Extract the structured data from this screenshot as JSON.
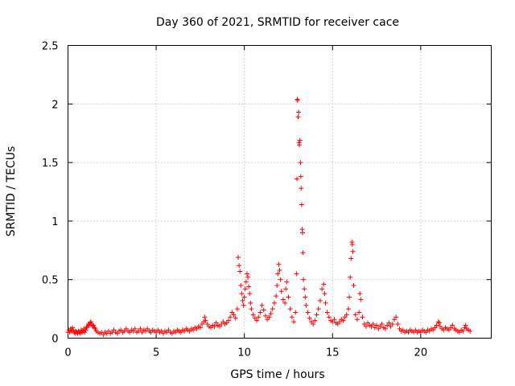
{
  "chart_data": {
    "type": "scatter",
    "title": "Day 360 of 2021, SRMTID for receiver cace",
    "xlabel": "GPS time / hours",
    "ylabel": "SRMTID / TECUs",
    "xlim": [
      0,
      24
    ],
    "ylim": [
      0,
      2.5
    ],
    "xticks": [
      0,
      5,
      10,
      15,
      20
    ],
    "xtick_labels": [
      "0",
      "5",
      "10",
      "15",
      "20"
    ],
    "yticks": [
      0,
      0.5,
      1,
      1.5,
      2,
      2.5
    ],
    "ytick_labels": [
      "0",
      "0.5",
      "1",
      "1.5",
      "2",
      "2.5"
    ],
    "grid": true,
    "marker": "plus",
    "color": "#ff0000",
    "series": [
      {
        "name": "SRMTID",
        "points": [
          [
            0.0,
            0.05
          ],
          [
            0.05,
            0.07
          ],
          [
            0.1,
            0.05
          ],
          [
            0.15,
            0.08
          ],
          [
            0.2,
            0.06
          ],
          [
            0.25,
            0.09
          ],
          [
            0.3,
            0.07
          ],
          [
            0.35,
            0.05
          ],
          [
            0.4,
            0.04
          ],
          [
            0.45,
            0.06
          ],
          [
            0.5,
            0.05
          ],
          [
            0.55,
            0.04
          ],
          [
            0.6,
            0.06
          ],
          [
            0.65,
            0.05
          ],
          [
            0.7,
            0.04
          ],
          [
            0.75,
            0.07
          ],
          [
            0.8,
            0.05
          ],
          [
            0.85,
            0.06
          ],
          [
            0.9,
            0.08
          ],
          [
            0.95,
            0.05
          ],
          [
            1.0,
            0.07
          ],
          [
            1.05,
            0.09
          ],
          [
            1.1,
            0.1
          ],
          [
            1.15,
            0.12
          ],
          [
            1.2,
            0.11
          ],
          [
            1.25,
            0.13
          ],
          [
            1.3,
            0.14
          ],
          [
            1.35,
            0.12
          ],
          [
            1.4,
            0.1
          ],
          [
            1.45,
            0.11
          ],
          [
            1.5,
            0.09
          ],
          [
            1.55,
            0.08
          ],
          [
            1.6,
            0.06
          ],
          [
            1.7,
            0.05
          ],
          [
            1.8,
            0.04
          ],
          [
            1.9,
            0.05
          ],
          [
            2.0,
            0.03
          ],
          [
            2.1,
            0.05
          ],
          [
            2.2,
            0.04
          ],
          [
            2.3,
            0.06
          ],
          [
            2.4,
            0.04
          ],
          [
            2.5,
            0.05
          ],
          [
            2.6,
            0.07
          ],
          [
            2.7,
            0.05
          ],
          [
            2.8,
            0.04
          ],
          [
            2.9,
            0.06
          ],
          [
            3.0,
            0.07
          ],
          [
            3.1,
            0.05
          ],
          [
            3.2,
            0.06
          ],
          [
            3.3,
            0.08
          ],
          [
            3.4,
            0.06
          ],
          [
            3.5,
            0.05
          ],
          [
            3.6,
            0.07
          ],
          [
            3.7,
            0.06
          ],
          [
            3.8,
            0.08
          ],
          [
            3.9,
            0.05
          ],
          [
            4.0,
            0.06
          ],
          [
            4.1,
            0.08
          ],
          [
            4.2,
            0.05
          ],
          [
            4.3,
            0.07
          ],
          [
            4.4,
            0.06
          ],
          [
            4.5,
            0.08
          ],
          [
            4.6,
            0.06
          ],
          [
            4.7,
            0.05
          ],
          [
            4.8,
            0.07
          ],
          [
            4.9,
            0.06
          ],
          [
            5.0,
            0.05
          ],
          [
            5.1,
            0.07
          ],
          [
            5.2,
            0.05
          ],
          [
            5.3,
            0.06
          ],
          [
            5.4,
            0.04
          ],
          [
            5.5,
            0.06
          ],
          [
            5.6,
            0.05
          ],
          [
            5.7,
            0.07
          ],
          [
            5.8,
            0.05
          ],
          [
            5.9,
            0.04
          ],
          [
            6.0,
            0.06
          ],
          [
            6.1,
            0.05
          ],
          [
            6.2,
            0.07
          ],
          [
            6.3,
            0.06
          ],
          [
            6.4,
            0.05
          ],
          [
            6.5,
            0.07
          ],
          [
            6.6,
            0.06
          ],
          [
            6.7,
            0.08
          ],
          [
            6.8,
            0.07
          ],
          [
            6.9,
            0.06
          ],
          [
            7.0,
            0.08
          ],
          [
            7.1,
            0.07
          ],
          [
            7.2,
            0.09
          ],
          [
            7.3,
            0.08
          ],
          [
            7.4,
            0.1
          ],
          [
            7.5,
            0.09
          ],
          [
            7.6,
            0.12
          ],
          [
            7.7,
            0.14
          ],
          [
            7.75,
            0.18
          ],
          [
            7.8,
            0.15
          ],
          [
            7.9,
            0.12
          ],
          [
            8.0,
            0.1
          ],
          [
            8.1,
            0.09
          ],
          [
            8.2,
            0.11
          ],
          [
            8.3,
            0.1
          ],
          [
            8.4,
            0.13
          ],
          [
            8.5,
            0.11
          ],
          [
            8.6,
            0.1
          ],
          [
            8.7,
            0.12
          ],
          [
            8.8,
            0.14
          ],
          [
            8.9,
            0.12
          ],
          [
            9.0,
            0.13
          ],
          [
            9.1,
            0.15
          ],
          [
            9.2,
            0.18
          ],
          [
            9.3,
            0.22
          ],
          [
            9.4,
            0.2
          ],
          [
            9.5,
            0.17
          ],
          [
            9.6,
            0.25
          ],
          [
            9.65,
            0.69
          ],
          [
            9.7,
            0.62
          ],
          [
            9.75,
            0.57
          ],
          [
            9.8,
            0.45
          ],
          [
            9.85,
            0.38
          ],
          [
            9.9,
            0.32
          ],
          [
            9.95,
            0.28
          ],
          [
            10.0,
            0.35
          ],
          [
            10.05,
            0.42
          ],
          [
            10.1,
            0.48
          ],
          [
            10.15,
            0.55
          ],
          [
            10.2,
            0.52
          ],
          [
            10.25,
            0.44
          ],
          [
            10.3,
            0.38
          ],
          [
            10.35,
            0.3
          ],
          [
            10.4,
            0.25
          ],
          [
            10.5,
            0.2
          ],
          [
            10.6,
            0.17
          ],
          [
            10.7,
            0.15
          ],
          [
            10.8,
            0.18
          ],
          [
            10.9,
            0.22
          ],
          [
            11.0,
            0.28
          ],
          [
            11.1,
            0.24
          ],
          [
            11.2,
            0.19
          ],
          [
            11.3,
            0.16
          ],
          [
            11.4,
            0.18
          ],
          [
            11.5,
            0.21
          ],
          [
            11.6,
            0.25
          ],
          [
            11.7,
            0.3
          ],
          [
            11.8,
            0.36
          ],
          [
            11.85,
            0.45
          ],
          [
            11.9,
            0.55
          ],
          [
            11.95,
            0.63
          ],
          [
            12.0,
            0.58
          ],
          [
            12.05,
            0.5
          ],
          [
            12.1,
            0.4
          ],
          [
            12.2,
            0.33
          ],
          [
            12.3,
            0.3
          ],
          [
            12.35,
            0.42
          ],
          [
            12.4,
            0.48
          ],
          [
            12.5,
            0.35
          ],
          [
            12.6,
            0.25
          ],
          [
            12.7,
            0.18
          ],
          [
            12.8,
            0.14
          ],
          [
            12.9,
            0.22
          ],
          [
            12.95,
            0.55
          ],
          [
            12.98,
            1.36
          ],
          [
            13.0,
            2.04
          ],
          [
            13.02,
            2.03
          ],
          [
            13.05,
            1.89
          ],
          [
            13.08,
            1.93
          ],
          [
            13.1,
            1.67
          ],
          [
            13.12,
            1.65
          ],
          [
            13.15,
            1.69
          ],
          [
            13.18,
            1.5
          ],
          [
            13.2,
            1.38
          ],
          [
            13.22,
            1.28
          ],
          [
            13.25,
            1.14
          ],
          [
            13.28,
            0.93
          ],
          [
            13.3,
            0.9
          ],
          [
            13.32,
            0.73
          ],
          [
            13.35,
            0.5
          ],
          [
            13.4,
            0.42
          ],
          [
            13.45,
            0.35
          ],
          [
            13.5,
            0.28
          ],
          [
            13.6,
            0.22
          ],
          [
            13.7,
            0.17
          ],
          [
            13.8,
            0.14
          ],
          [
            13.9,
            0.12
          ],
          [
            14.0,
            0.15
          ],
          [
            14.1,
            0.2
          ],
          [
            14.2,
            0.25
          ],
          [
            14.3,
            0.32
          ],
          [
            14.4,
            0.42
          ],
          [
            14.5,
            0.46
          ],
          [
            14.55,
            0.38
          ],
          [
            14.6,
            0.3
          ],
          [
            14.7,
            0.22
          ],
          [
            14.8,
            0.18
          ],
          [
            14.9,
            0.15
          ],
          [
            15.0,
            0.14
          ],
          [
            15.1,
            0.16
          ],
          [
            15.2,
            0.13
          ],
          [
            15.3,
            0.12
          ],
          [
            15.4,
            0.14
          ],
          [
            15.5,
            0.16
          ],
          [
            15.6,
            0.15
          ],
          [
            15.7,
            0.18
          ],
          [
            15.8,
            0.2
          ],
          [
            15.9,
            0.25
          ],
          [
            15.95,
            0.35
          ],
          [
            16.0,
            0.52
          ],
          [
            16.05,
            0.68
          ],
          [
            16.1,
            0.82
          ],
          [
            16.12,
            0.8
          ],
          [
            16.15,
            0.74
          ],
          [
            16.2,
            0.45
          ],
          [
            16.3,
            0.2
          ],
          [
            16.4,
            0.16
          ],
          [
            16.5,
            0.22
          ],
          [
            16.55,
            0.38
          ],
          [
            16.6,
            0.33
          ],
          [
            16.7,
            0.18
          ],
          [
            16.8,
            0.12
          ],
          [
            16.9,
            0.1
          ],
          [
            17.0,
            0.13
          ],
          [
            17.1,
            0.11
          ],
          [
            17.2,
            0.1
          ],
          [
            17.3,
            0.12
          ],
          [
            17.4,
            0.09
          ],
          [
            17.5,
            0.11
          ],
          [
            17.6,
            0.08
          ],
          [
            17.7,
            0.1
          ],
          [
            17.8,
            0.12
          ],
          [
            17.9,
            0.09
          ],
          [
            18.0,
            0.08
          ],
          [
            18.1,
            0.11
          ],
          [
            18.2,
            0.13
          ],
          [
            18.3,
            0.1
          ],
          [
            18.4,
            0.12
          ],
          [
            18.5,
            0.16
          ],
          [
            18.6,
            0.18
          ],
          [
            18.7,
            0.12
          ],
          [
            18.8,
            0.08
          ],
          [
            18.9,
            0.06
          ],
          [
            19.0,
            0.07
          ],
          [
            19.1,
            0.05
          ],
          [
            19.2,
            0.06
          ],
          [
            19.3,
            0.05
          ],
          [
            19.4,
            0.07
          ],
          [
            19.5,
            0.06
          ],
          [
            19.6,
            0.05
          ],
          [
            19.7,
            0.07
          ],
          [
            19.8,
            0.05
          ],
          [
            19.9,
            0.06
          ],
          [
            20.0,
            0.05
          ],
          [
            20.1,
            0.07
          ],
          [
            20.2,
            0.06
          ],
          [
            20.3,
            0.05
          ],
          [
            20.4,
            0.07
          ],
          [
            20.5,
            0.06
          ],
          [
            20.6,
            0.08
          ],
          [
            20.7,
            0.07
          ],
          [
            20.8,
            0.09
          ],
          [
            20.9,
            0.11
          ],
          [
            21.0,
            0.14
          ],
          [
            21.05,
            0.13
          ],
          [
            21.1,
            0.1
          ],
          [
            21.2,
            0.08
          ],
          [
            21.3,
            0.07
          ],
          [
            21.4,
            0.09
          ],
          [
            21.5,
            0.08
          ],
          [
            21.6,
            0.07
          ],
          [
            21.7,
            0.09
          ],
          [
            21.8,
            0.11
          ],
          [
            21.9,
            0.08
          ],
          [
            22.0,
            0.07
          ],
          [
            22.1,
            0.06
          ],
          [
            22.2,
            0.05
          ],
          [
            22.3,
            0.07
          ],
          [
            22.4,
            0.06
          ],
          [
            22.5,
            0.09
          ],
          [
            22.55,
            0.11
          ],
          [
            22.6,
            0.08
          ],
          [
            22.7,
            0.07
          ],
          [
            22.8,
            0.06
          ]
        ]
      }
    ]
  }
}
